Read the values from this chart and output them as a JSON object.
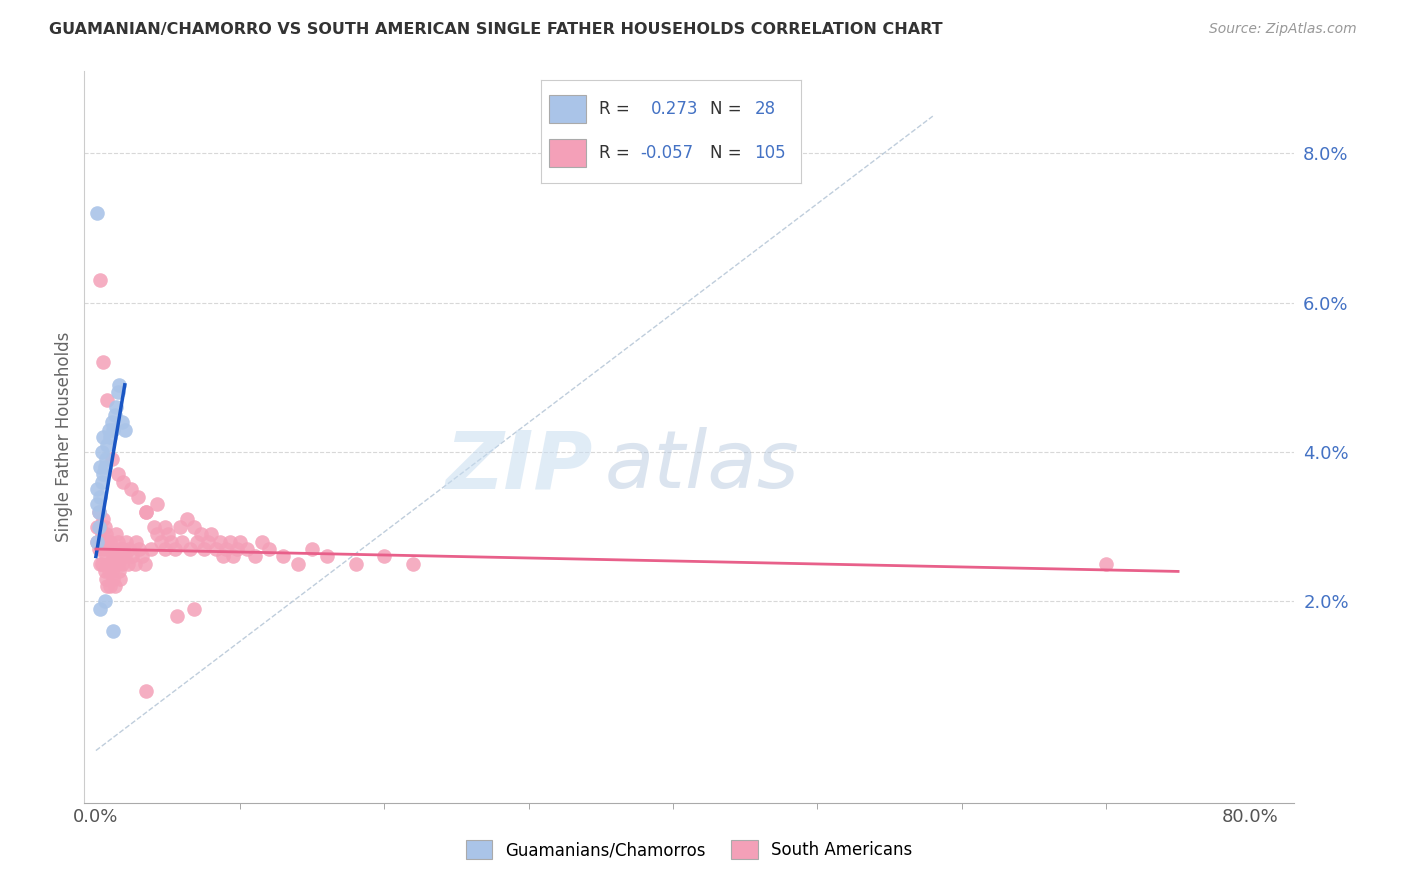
{
  "title": "GUAMANIAN/CHAMORRO VS SOUTH AMERICAN SINGLE FATHER HOUSEHOLDS CORRELATION CHART",
  "source": "Source: ZipAtlas.com",
  "ylabel": "Single Father Households",
  "ytick_vals": [
    0.02,
    0.04,
    0.06,
    0.08
  ],
  "ytick_labels": [
    "2.0%",
    "4.0%",
    "6.0%",
    "8.0%"
  ],
  "xtick_vals": [
    0.0,
    0.8
  ],
  "xtick_labels": [
    "0.0%",
    "80.0%"
  ],
  "xlim": [
    -0.008,
    0.83
  ],
  "ylim": [
    -0.007,
    0.091
  ],
  "legend_blue_r": "0.273",
  "legend_blue_n": "28",
  "legend_pink_r": "-0.057",
  "legend_pink_n": "105",
  "blue_color": "#aac4e8",
  "pink_color": "#f4a0b8",
  "blue_line_color": "#1a56c4",
  "pink_line_color": "#e8608a",
  "grid_color": "#d8d8d8",
  "blue_points_x": [
    0.0005,
    0.001,
    0.001,
    0.002,
    0.002,
    0.003,
    0.003,
    0.004,
    0.004,
    0.005,
    0.005,
    0.006,
    0.007,
    0.008,
    0.009,
    0.01,
    0.011,
    0.012,
    0.013,
    0.014,
    0.015,
    0.016,
    0.018,
    0.02,
    0.001,
    0.003,
    0.012,
    0.006
  ],
  "blue_points_y": [
    0.028,
    0.033,
    0.035,
    0.03,
    0.032,
    0.034,
    0.038,
    0.036,
    0.04,
    0.037,
    0.042,
    0.038,
    0.039,
    0.041,
    0.043,
    0.042,
    0.044,
    0.043,
    0.045,
    0.046,
    0.048,
    0.049,
    0.044,
    0.043,
    0.072,
    0.019,
    0.016,
    0.02
  ],
  "pink_points_x": [
    0.001,
    0.001,
    0.002,
    0.002,
    0.003,
    0.003,
    0.003,
    0.004,
    0.004,
    0.004,
    0.005,
    0.005,
    0.006,
    0.006,
    0.006,
    0.007,
    0.007,
    0.007,
    0.008,
    0.008,
    0.008,
    0.009,
    0.009,
    0.01,
    0.01,
    0.01,
    0.011,
    0.011,
    0.012,
    0.012,
    0.013,
    0.013,
    0.014,
    0.014,
    0.015,
    0.015,
    0.016,
    0.016,
    0.017,
    0.017,
    0.018,
    0.019,
    0.02,
    0.021,
    0.022,
    0.023,
    0.025,
    0.027,
    0.028,
    0.03,
    0.032,
    0.034,
    0.035,
    0.038,
    0.04,
    0.042,
    0.045,
    0.048,
    0.05,
    0.052,
    0.055,
    0.058,
    0.06,
    0.063,
    0.065,
    0.068,
    0.07,
    0.073,
    0.075,
    0.078,
    0.08,
    0.083,
    0.086,
    0.088,
    0.09,
    0.093,
    0.095,
    0.098,
    0.1,
    0.105,
    0.11,
    0.115,
    0.12,
    0.13,
    0.14,
    0.15,
    0.16,
    0.18,
    0.2,
    0.22,
    0.003,
    0.005,
    0.008,
    0.011,
    0.015,
    0.019,
    0.024,
    0.029,
    0.035,
    0.042,
    0.048,
    0.056,
    0.068,
    0.035,
    0.7
  ],
  "pink_points_y": [
    0.03,
    0.028,
    0.032,
    0.027,
    0.03,
    0.028,
    0.025,
    0.029,
    0.027,
    0.025,
    0.031,
    0.028,
    0.03,
    0.027,
    0.024,
    0.029,
    0.026,
    0.023,
    0.028,
    0.025,
    0.022,
    0.027,
    0.024,
    0.028,
    0.025,
    0.022,
    0.027,
    0.024,
    0.026,
    0.023,
    0.025,
    0.022,
    0.029,
    0.026,
    0.028,
    0.025,
    0.027,
    0.024,
    0.026,
    0.023,
    0.025,
    0.027,
    0.026,
    0.028,
    0.025,
    0.027,
    0.026,
    0.025,
    0.028,
    0.027,
    0.026,
    0.025,
    0.032,
    0.027,
    0.03,
    0.029,
    0.028,
    0.027,
    0.029,
    0.028,
    0.027,
    0.03,
    0.028,
    0.031,
    0.027,
    0.03,
    0.028,
    0.029,
    0.027,
    0.028,
    0.029,
    0.027,
    0.028,
    0.026,
    0.027,
    0.028,
    0.026,
    0.027,
    0.028,
    0.027,
    0.026,
    0.028,
    0.027,
    0.026,
    0.025,
    0.027,
    0.026,
    0.025,
    0.026,
    0.025,
    0.063,
    0.052,
    0.047,
    0.039,
    0.037,
    0.036,
    0.035,
    0.034,
    0.032,
    0.033,
    0.03,
    0.018,
    0.019,
    0.008,
    0.025
  ],
  "blue_line_x": [
    0.0,
    0.02
  ],
  "blue_line_y": [
    0.026,
    0.049
  ],
  "pink_line_x": [
    0.0,
    0.75
  ],
  "pink_line_y": [
    0.027,
    0.024
  ]
}
